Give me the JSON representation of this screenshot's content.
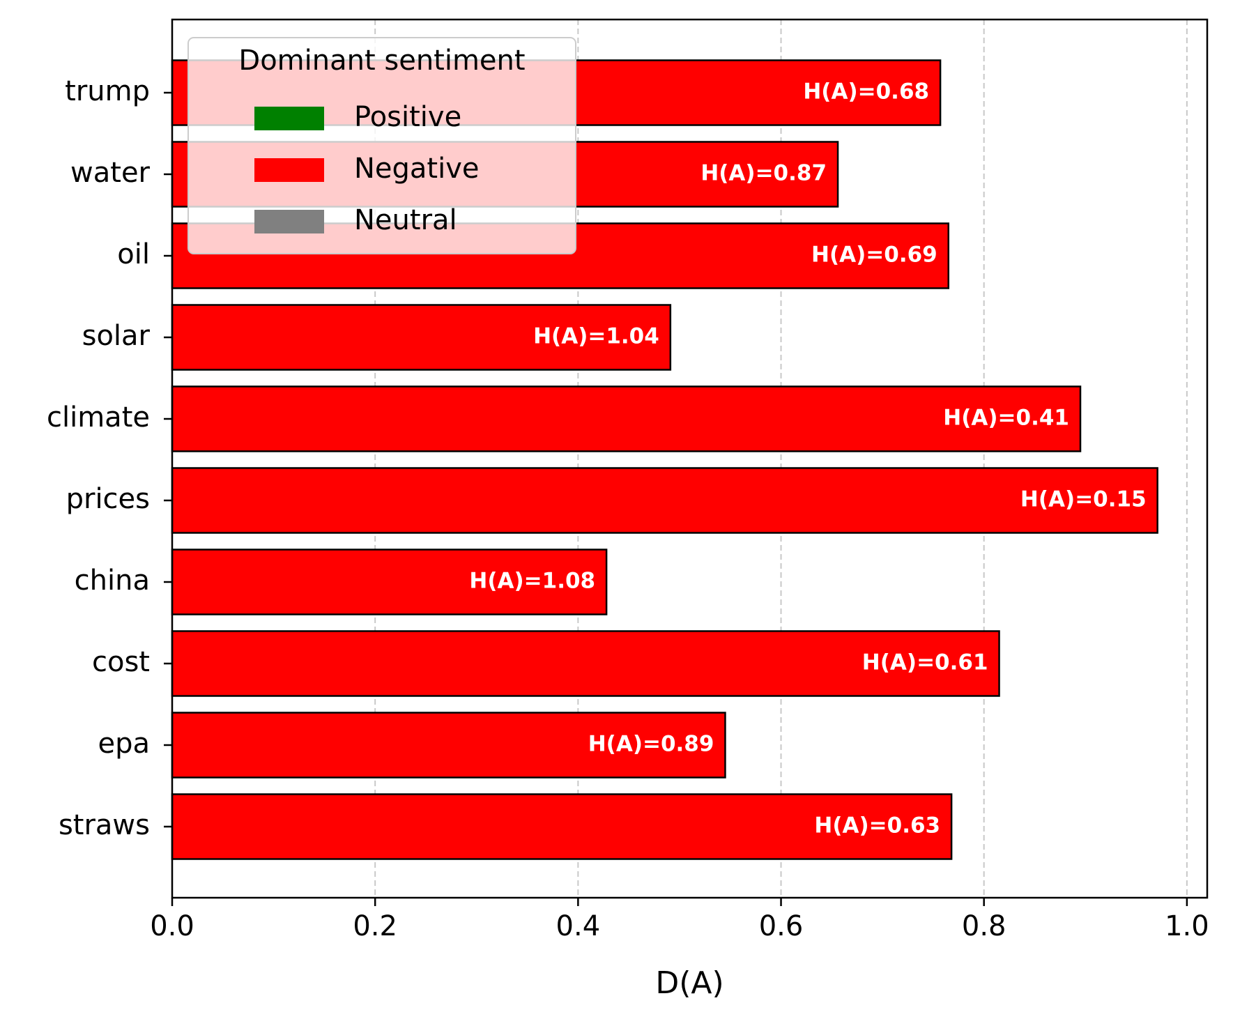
{
  "chart_data": {
    "type": "bar",
    "orientation": "horizontal",
    "title": "",
    "xlabel": "D(A)",
    "ylabel": "",
    "xlim": [
      0.0,
      1.02
    ],
    "x_ticks": [
      "0.0",
      "0.2",
      "0.4",
      "0.6",
      "0.8",
      "1.0"
    ],
    "x_tick_values": [
      0.0,
      0.2,
      0.4,
      0.6,
      0.8,
      1.0
    ],
    "grid": "x dashed",
    "categories": [
      "trump",
      "water",
      "oil",
      "solar",
      "climate",
      "prices",
      "china",
      "cost",
      "epa",
      "straws"
    ],
    "values": [
      0.757,
      0.656,
      0.765,
      0.491,
      0.895,
      0.971,
      0.428,
      0.815,
      0.545,
      0.768
    ],
    "bar_labels": [
      "H(A)=0.68",
      "H(A)=0.87",
      "H(A)=0.69",
      "H(A)=1.04",
      "H(A)=0.41",
      "H(A)=0.15",
      "H(A)=1.08",
      "H(A)=0.61",
      "H(A)=0.89",
      "H(A)=0.63"
    ],
    "sentiments": [
      "Negative",
      "Negative",
      "Negative",
      "Negative",
      "Negative",
      "Negative",
      "Negative",
      "Negative",
      "Negative",
      "Negative"
    ],
    "legend": {
      "title": "Dominant sentiment",
      "placement": "top-left",
      "entries": [
        {
          "label": "Positive",
          "color": "#008000"
        },
        {
          "label": "Negative",
          "color": "#ff0000"
        },
        {
          "label": "Neutral",
          "color": "#808080"
        }
      ]
    }
  }
}
